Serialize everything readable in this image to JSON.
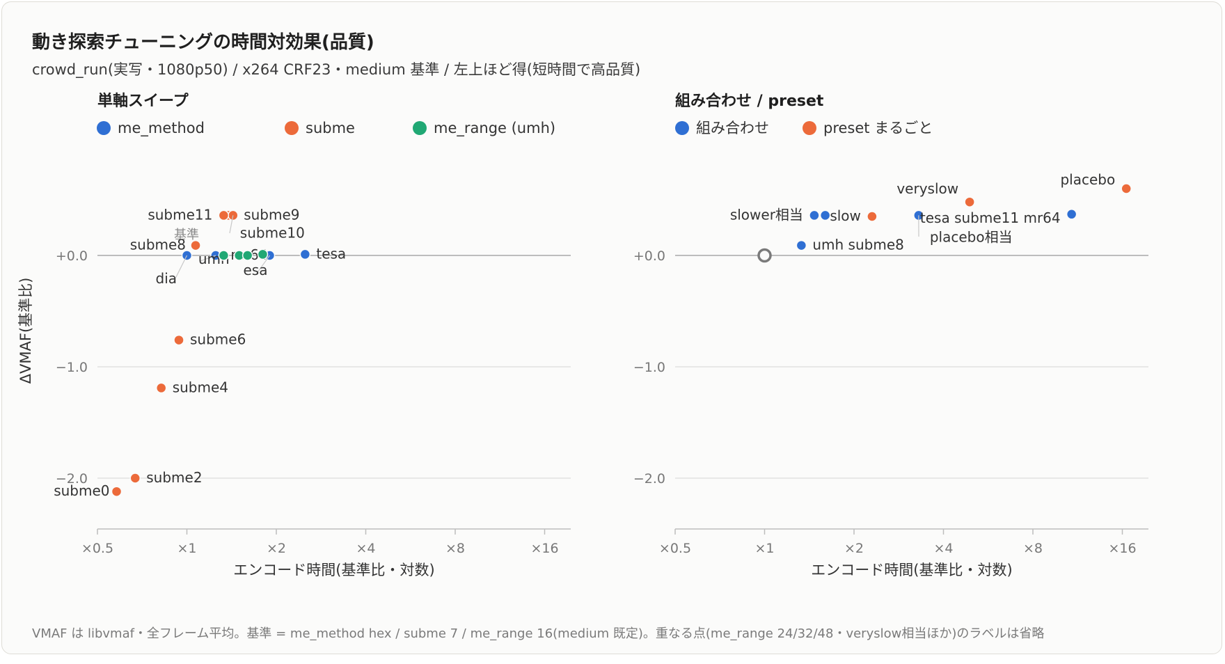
{
  "header": {
    "title": "動き探索チューニングの時間対効果(品質)",
    "subtitle": "crowd_run(実写・1080p50) / x264 CRF23・medium 基準 / 左上ほど得(短時間で高品質)"
  },
  "footnote": "VMAF は libvmaf・全フレーム平均。基準 = me_method hex / subme 7 / me_range 16(medium 既定)。重なる点(me_range 24/32/48・veryslow相当ほか)のラベルは省略",
  "colors": {
    "blue": "#2f6fd3",
    "orange": "#ec6a3a",
    "green": "#20a874",
    "grid": "#dcdcdc",
    "axis": "#bdbdbd",
    "baseline": "#bdbdbd"
  },
  "chart_data": [
    {
      "type": "scatter",
      "panel_title": "単軸スイープ",
      "xlabel": "エンコード時間(基準比・対数)",
      "ylabel": "ΔVMAF(基準比)",
      "x_scale": "log2",
      "xlim": [
        0.5,
        24
      ],
      "ylim": [
        -2.45,
        0.8
      ],
      "x_ticks": [
        0.5,
        1,
        2,
        4,
        8,
        16
      ],
      "x_tick_labels": [
        "×0.5",
        "×1",
        "×2",
        "×4",
        "×8",
        "×16"
      ],
      "y_ticks": [
        0,
        -1,
        -2
      ],
      "y_tick_labels": [
        "+0.0",
        "−1.0",
        "−2.0"
      ],
      "legend": [
        "me_method",
        "subme",
        "me_range (umh)"
      ],
      "baseline_label": "基準",
      "series": [
        {
          "name": "me_method",
          "color": "blue",
          "points": [
            {
              "x": 1.0,
              "y": 0.0,
              "label": "dia"
            },
            {
              "x": 1.25,
              "y": 0.0,
              "label": "umh"
            },
            {
              "x": 1.9,
              "y": 0.0,
              "label": "esa"
            },
            {
              "x": 2.5,
              "y": 0.01,
              "label": "tesa"
            }
          ]
        },
        {
          "name": "subme",
          "color": "orange",
          "points": [
            {
              "x": 0.58,
              "y": -2.12,
              "label": "subme0"
            },
            {
              "x": 0.67,
              "y": -2.0,
              "label": "subme2"
            },
            {
              "x": 0.82,
              "y": -1.19,
              "label": "subme4"
            },
            {
              "x": 0.94,
              "y": -0.76,
              "label": "subme6"
            },
            {
              "x": 1.07,
              "y": 0.09,
              "label": "subme8"
            },
            {
              "x": 1.38,
              "y": 0.36,
              "label": "subme9"
            },
            {
              "x": 1.43,
              "y": 0.36,
              "label": "subme10"
            },
            {
              "x": 1.33,
              "y": 0.36,
              "label": "subme11"
            }
          ]
        },
        {
          "name": "me_range (umh)",
          "color": "green",
          "points": [
            {
              "x": 1.33,
              "y": 0.0,
              "label": "mr64"
            },
            {
              "x": 1.5,
              "y": 0.0,
              "label": ""
            },
            {
              "x": 1.6,
              "y": 0.0,
              "label": ""
            },
            {
              "x": 1.8,
              "y": 0.01,
              "label": ""
            }
          ]
        }
      ]
    },
    {
      "type": "scatter",
      "panel_title": "組み合わせ / preset",
      "xlabel": "エンコード時間(基準比・対数)",
      "x_scale": "log2",
      "xlim": [
        0.5,
        18
      ],
      "ylim": [
        -2.45,
        0.8
      ],
      "x_ticks": [
        0.5,
        1,
        2,
        4,
        8,
        16
      ],
      "x_tick_labels": [
        "×0.5",
        "×1",
        "×2",
        "×4",
        "×8",
        "×16"
      ],
      "y_ticks": [
        0,
        -1,
        -2
      ],
      "y_tick_labels": [
        "+0.0",
        "−1.0",
        "−2.0"
      ],
      "legend": [
        "組み合わせ",
        "preset まるごと"
      ],
      "baseline": {
        "x": 1.0,
        "y": 0.0
      },
      "series": [
        {
          "name": "組み合わせ",
          "color": "blue",
          "points": [
            {
              "x": 1.33,
              "y": 0.09,
              "label": "umh subme8"
            },
            {
              "x": 1.47,
              "y": 0.36,
              "label": "slower相当"
            },
            {
              "x": 1.6,
              "y": 0.36,
              "label": ""
            },
            {
              "x": 3.3,
              "y": 0.36,
              "label": "placebo相当"
            },
            {
              "x": 10.8,
              "y": 0.37,
              "label": "tesa subme11 mr64"
            }
          ]
        },
        {
          "name": "preset まるごと",
          "color": "orange",
          "points": [
            {
              "x": 2.3,
              "y": 0.35,
              "label": "slow"
            },
            {
              "x": 4.9,
              "y": 0.48,
              "label": "veryslow"
            },
            {
              "x": 16.5,
              "y": 0.6,
              "label": "placebo"
            }
          ]
        }
      ]
    }
  ]
}
